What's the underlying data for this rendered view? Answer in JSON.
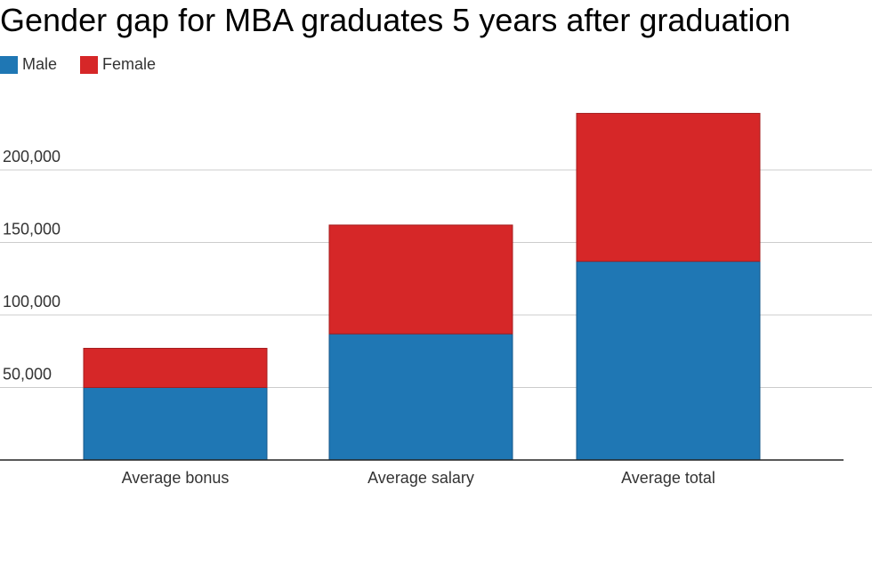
{
  "chart_data": {
    "type": "bar",
    "stacked": true,
    "title": "Gender gap for MBA graduates 5 years after graduation",
    "xlabel": "",
    "ylabel": "",
    "categories": [
      "Average bonus",
      "Average salary",
      "Average total"
    ],
    "series": [
      {
        "name": "Male",
        "color": "#1f77b4",
        "values": [
          50000,
          87000,
          137000
        ]
      },
      {
        "name": "Female",
        "color": "#d62728",
        "values": [
          27000,
          75000,
          102000
        ]
      }
    ],
    "ylim": [
      0,
      240000
    ],
    "yticks": [
      50000,
      100000,
      150000,
      200000
    ],
    "ytick_labels": [
      "50,000",
      "100,000",
      "150,000",
      "200,000"
    ],
    "grid": true,
    "legend": "top-left"
  }
}
